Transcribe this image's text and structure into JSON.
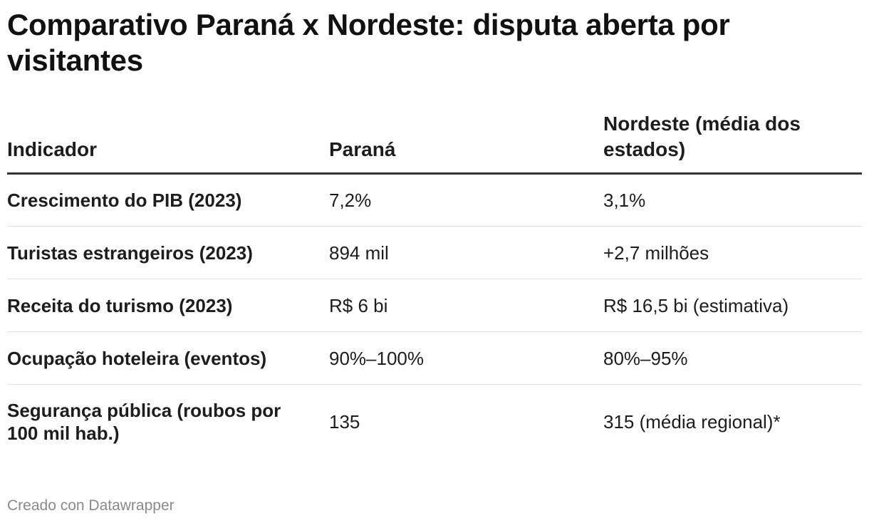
{
  "chart_data": {
    "type": "table",
    "title": "Comparativo Paraná x Nordeste: disputa aberta por visitantes",
    "columns": [
      "Indicador",
      "Paraná",
      "Nordeste (média dos estados)"
    ],
    "rows": [
      [
        "Crescimento do PIB (2023)",
        "7,2%",
        "3,1%"
      ],
      [
        "Turistas estrangeiros (2023)",
        "894 mil",
        "+2,7 milhões"
      ],
      [
        "Receita do turismo (2023)",
        "R$ 6 bi",
        "R$ 16,5 bi (estimativa)"
      ],
      [
        "Ocupação hoteleira (eventos)",
        "90%–100%",
        "80%–95%"
      ],
      [
        "Segurança pública (roubos por 100 mil hab.)",
        "135",
        "315 (média regional)*"
      ]
    ]
  },
  "footer": "Creado con Datawrapper"
}
